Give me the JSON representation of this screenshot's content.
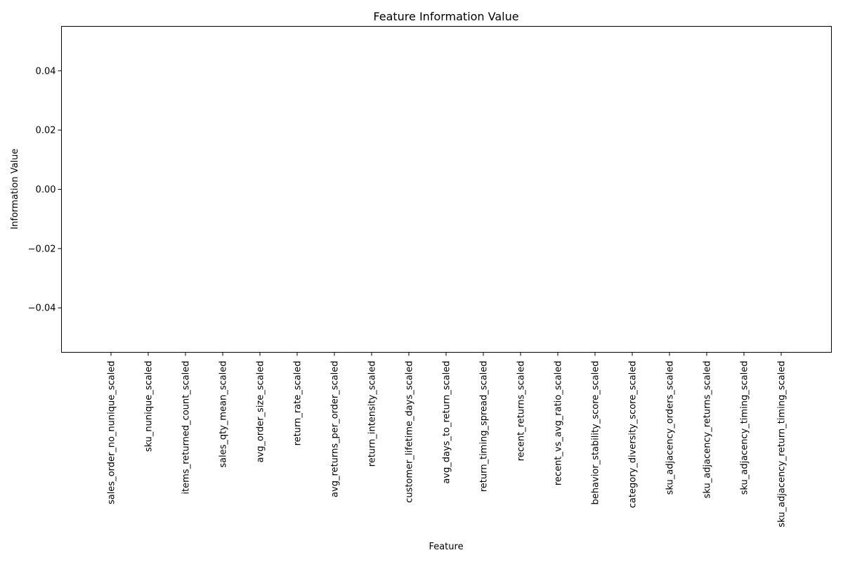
{
  "chart_data": {
    "type": "bar",
    "title": "Feature Information Value",
    "xlabel": "Feature",
    "ylabel": "Information Value",
    "categories": [
      "sales_order_no_nunique_scaled",
      "sku_nunique_scaled",
      "items_returned_count_scaled",
      "sales_qty_mean_scaled",
      "avg_order_size_scaled",
      "return_rate_scaled",
      "avg_returns_per_order_scaled",
      "return_intensity_scaled",
      "customer_lifetime_days_scaled",
      "avg_days_to_return_scaled",
      "return_timing_spread_scaled",
      "recent_returns_scaled",
      "recent_vs_avg_ratio_scaled",
      "behavior_stability_score_scaled",
      "category_diversity_score_scaled",
      "sku_adjacency_orders_scaled",
      "sku_adjacency_returns_scaled",
      "sku_adjacency_timing_scaled",
      "sku_adjacency_return_timing_scaled"
    ],
    "values": [
      0,
      0,
      0,
      0,
      0,
      0,
      0,
      0,
      0,
      0,
      0,
      0,
      0,
      0,
      0,
      0,
      0,
      0,
      0
    ],
    "ylim": [
      -0.055,
      0.055
    ],
    "yticks": [
      0.04,
      0.02,
      0.0,
      -0.02,
      -0.04
    ],
    "ytick_labels": [
      "0.04",
      "0.02",
      "0.00",
      "−0.02",
      "−0.04"
    ],
    "grid": false,
    "bar_color": "#1f77b4"
  }
}
